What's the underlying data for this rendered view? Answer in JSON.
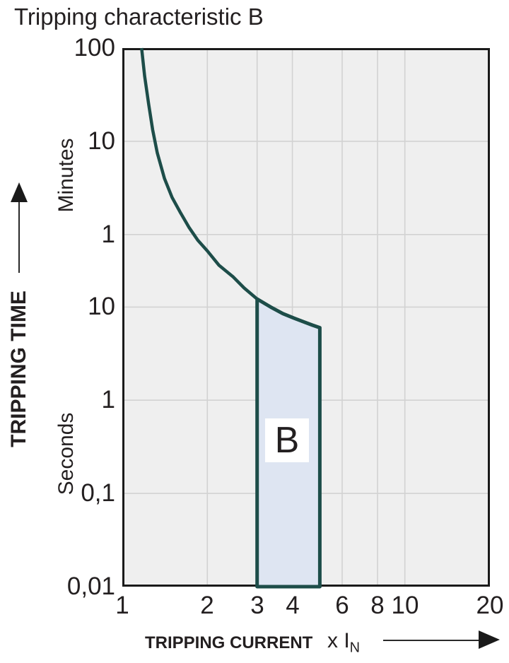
{
  "title": "Tripping characteristic B",
  "colors": {
    "curve": "#1d4d49",
    "region_fill": "#dee5f2",
    "plot_background": "#efefef",
    "gridline": "#d2d2d2",
    "border": "#1a1a1a",
    "text": "#231f20"
  },
  "chart_data": {
    "type": "line",
    "title": "Tripping characteristic B",
    "grid": true,
    "x_axis": {
      "label": "TRIPPING CURRENT",
      "unit_prefix": "x I",
      "unit_sub": "N",
      "scale": "log",
      "range": [
        1,
        20
      ],
      "tick_labels": [
        [
          "1",
          1
        ],
        [
          "2",
          2
        ],
        [
          "3",
          3
        ],
        [
          "4",
          4
        ],
        [
          "6",
          6
        ],
        [
          "8",
          8
        ],
        [
          "10",
          10
        ],
        [
          "20",
          20
        ]
      ],
      "gridlines": [
        2,
        3,
        4,
        6,
        8,
        10
      ]
    },
    "y_axis": {
      "label": "TRIPPING TIME",
      "scale": "log",
      "range_seconds": [
        0.01,
        6000
      ],
      "gridlines_seconds": [
        600,
        60,
        10,
        1,
        0.1
      ],
      "minute_tick_labels": [
        [
          "100",
          6000
        ],
        [
          "10",
          600
        ],
        [
          "1",
          60
        ]
      ],
      "second_tick_labels": [
        [
          "10",
          10
        ],
        [
          "1",
          1
        ],
        [
          "0,1",
          0.1
        ],
        [
          "0,01",
          0.01
        ]
      ],
      "unit_group_labels": [
        "Minutes",
        "Seconds"
      ]
    },
    "series": [
      {
        "name": "tripping-characteristic-b-curve",
        "color": "#1d4d49",
        "points_x_multiple_vs_seconds": [
          [
            1.17,
            6000
          ],
          [
            1.2,
            3000
          ],
          [
            1.24,
            1500
          ],
          [
            1.28,
            800
          ],
          [
            1.33,
            450
          ],
          [
            1.41,
            240
          ],
          [
            1.5,
            150
          ],
          [
            1.6,
            105
          ],
          [
            1.72,
            72
          ],
          [
            1.85,
            52
          ],
          [
            2.0,
            40
          ],
          [
            2.2,
            28
          ],
          [
            2.47,
            21
          ],
          [
            2.7,
            16
          ],
          [
            3.0,
            12.2
          ],
          [
            3.35,
            10
          ],
          [
            3.7,
            8.5
          ],
          [
            4.05,
            7.6
          ],
          [
            4.4,
            6.9
          ],
          [
            4.7,
            6.4
          ],
          [
            5.0,
            6.0
          ]
        ]
      }
    ],
    "region": {
      "label": "B",
      "fill": "#dee5f2",
      "stroke": "#1d4d49",
      "x_range": [
        3,
        5
      ],
      "bottom_seconds": 0.01,
      "top_points_seconds": [
        [
          3.0,
          12.2
        ],
        [
          3.35,
          10
        ],
        [
          3.7,
          8.5
        ],
        [
          4.05,
          7.6
        ],
        [
          4.4,
          6.9
        ],
        [
          4.7,
          6.4
        ],
        [
          5.0,
          6.0
        ]
      ]
    }
  }
}
